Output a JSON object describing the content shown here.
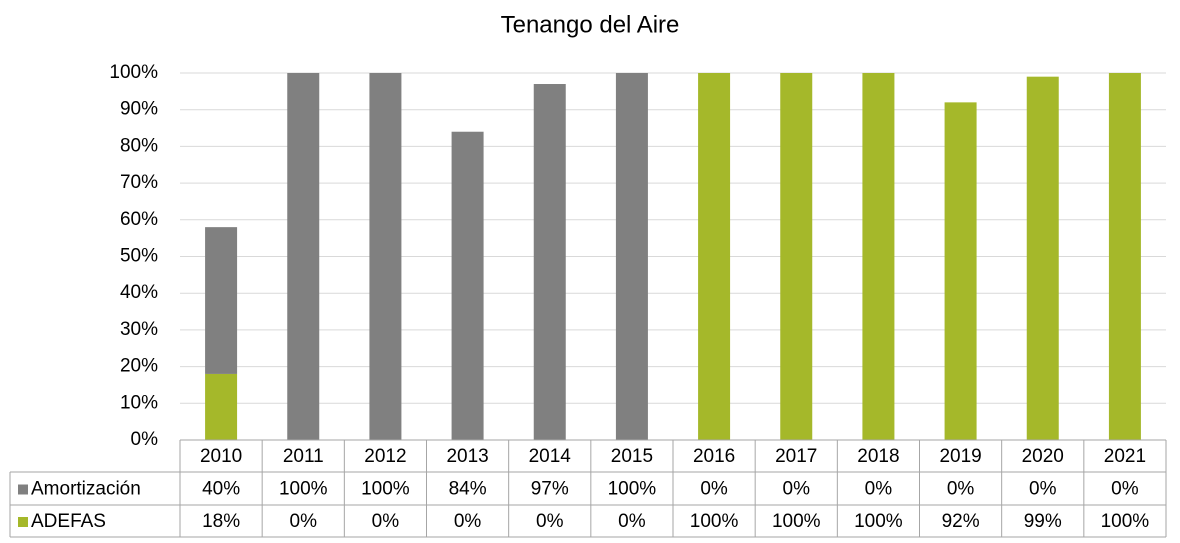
{
  "chart_data": {
    "type": "stacked_bar",
    "title": "Tenango del Aire",
    "categories": [
      "2010",
      "2011",
      "2012",
      "2013",
      "2014",
      "2015",
      "2016",
      "2017",
      "2018",
      "2019",
      "2020",
      "2021"
    ],
    "series": [
      {
        "name": "Amortización",
        "color": "#808080",
        "values": [
          40,
          100,
          100,
          84,
          97,
          100,
          0,
          0,
          0,
          0,
          0,
          0
        ],
        "value_labels": [
          "40%",
          "100%",
          "100%",
          "84%",
          "97%",
          "100%",
          "0%",
          "0%",
          "0%",
          "0%",
          "0%",
          "0%"
        ]
      },
      {
        "name": "ADEFAS",
        "color": "#a5b82a",
        "values": [
          18,
          0,
          0,
          0,
          0,
          0,
          100,
          100,
          100,
          92,
          99,
          100
        ],
        "value_labels": [
          "18%",
          "0%",
          "0%",
          "0%",
          "0%",
          "0%",
          "100%",
          "100%",
          "100%",
          "92%",
          "99%",
          "100%"
        ]
      }
    ],
    "ylim": [
      0,
      100
    ],
    "yticks": [
      {
        "value": 0,
        "label": "0%"
      },
      {
        "value": 10,
        "label": "10%"
      },
      {
        "value": 20,
        "label": "20%"
      },
      {
        "value": 30,
        "label": "30%"
      },
      {
        "value": 40,
        "label": "40%"
      },
      {
        "value": 50,
        "label": "50%"
      },
      {
        "value": 60,
        "label": "60%"
      },
      {
        "value": 70,
        "label": "70%"
      },
      {
        "value": 80,
        "label": "80%"
      },
      {
        "value": 90,
        "label": "90%"
      },
      {
        "value": 100,
        "label": "100%"
      }
    ],
    "grid": true
  }
}
